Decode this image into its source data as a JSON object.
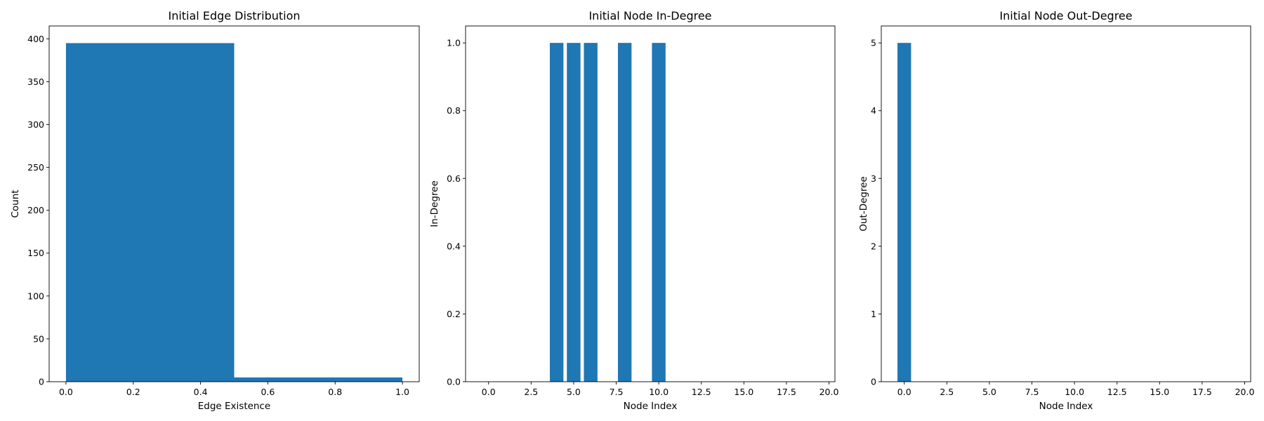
{
  "chart_data": [
    {
      "type": "bar",
      "title": "Initial Edge Distribution",
      "xlabel": "Edge Existence",
      "ylabel": "Count",
      "xlim": [
        -0.05,
        1.05
      ],
      "ylim": [
        0,
        415
      ],
      "xticks": [
        0.0,
        0.2,
        0.4,
        0.6,
        0.8,
        1.0
      ],
      "xtick_labels": [
        "0.0",
        "0.2",
        "0.4",
        "0.6",
        "0.8",
        "1.0"
      ],
      "yticks": [
        0,
        50,
        100,
        150,
        200,
        250,
        300,
        350,
        400
      ],
      "ytick_labels": [
        "0",
        "50",
        "100",
        "150",
        "200",
        "250",
        "300",
        "350",
        "400"
      ],
      "bins": [
        [
          0.0,
          0.5
        ],
        [
          0.5,
          1.0
        ]
      ],
      "values": [
        395,
        5
      ],
      "color": "#1f77b4"
    },
    {
      "type": "bar",
      "title": "Initial Node In-Degree",
      "xlabel": "Node Index",
      "ylabel": "In-Degree",
      "xlim": [
        -1.35,
        20.35
      ],
      "ylim": [
        0,
        1.05
      ],
      "xticks": [
        0.0,
        2.5,
        5.0,
        7.5,
        10.0,
        12.5,
        15.0,
        17.5,
        20.0
      ],
      "xtick_labels": [
        "0.0",
        "2.5",
        "5.0",
        "7.5",
        "10.0",
        "12.5",
        "15.0",
        "17.5",
        "20.0"
      ],
      "yticks": [
        0.0,
        0.2,
        0.4,
        0.6,
        0.8,
        1.0
      ],
      "ytick_labels": [
        "0.0",
        "0.2",
        "0.4",
        "0.6",
        "0.8",
        "1.0"
      ],
      "categories": [
        0,
        1,
        2,
        3,
        4,
        5,
        6,
        7,
        8,
        9,
        10,
        11,
        12,
        13,
        14,
        15,
        16,
        17,
        18,
        19
      ],
      "values": [
        0,
        0,
        0,
        0,
        1,
        1,
        1,
        0,
        1,
        0,
        1,
        0,
        0,
        0,
        0,
        0,
        0,
        0,
        0,
        0
      ],
      "color": "#1f77b4"
    },
    {
      "type": "bar",
      "title": "Initial Node Out-Degree",
      "xlabel": "Node Index",
      "ylabel": "Out-Degree",
      "xlim": [
        -1.35,
        20.35
      ],
      "ylim": [
        0,
        5.25
      ],
      "xticks": [
        0.0,
        2.5,
        5.0,
        7.5,
        10.0,
        12.5,
        15.0,
        17.5,
        20.0
      ],
      "xtick_labels": [
        "0.0",
        "2.5",
        "5.0",
        "7.5",
        "10.0",
        "12.5",
        "15.0",
        "17.5",
        "20.0"
      ],
      "yticks": [
        0,
        1,
        2,
        3,
        4,
        5
      ],
      "ytick_labels": [
        "0",
        "1",
        "2",
        "3",
        "4",
        "5"
      ],
      "categories": [
        0,
        1,
        2,
        3,
        4,
        5,
        6,
        7,
        8,
        9,
        10,
        11,
        12,
        13,
        14,
        15,
        16,
        17,
        18,
        19
      ],
      "values": [
        5,
        0,
        0,
        0,
        0,
        0,
        0,
        0,
        0,
        0,
        0,
        0,
        0,
        0,
        0,
        0,
        0,
        0,
        0,
        0
      ],
      "color": "#1f77b4"
    }
  ]
}
